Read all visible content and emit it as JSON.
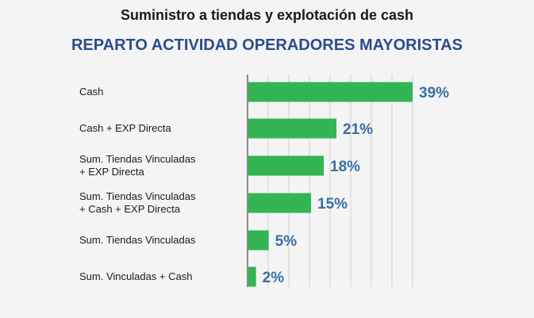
{
  "chart_data": {
    "type": "bar",
    "orientation": "horizontal",
    "title": "Suministro a tiendas y explotación de cash",
    "subtitle": "REPARTO ACTIVIDAD OPERADORES MAYORISTAS",
    "categories": [
      [
        "Cash"
      ],
      [
        "Cash + EXP Directa"
      ],
      [
        "Sum. Tiendas Vinculadas",
        "+ EXP Directa"
      ],
      [
        "Sum. Tiendas Vinculadas",
        "+ Cash + EXP Directa"
      ],
      [
        "Sum. Tiendas Vinculadas"
      ],
      [
        "Sum. Vinculadas + Cash"
      ]
    ],
    "values": [
      39,
      21,
      18,
      15,
      5,
      2
    ],
    "value_labels": [
      "39%",
      "21%",
      "18%",
      "15%",
      "5%",
      "2%"
    ],
    "xlim": [
      0,
      40
    ],
    "grid": true,
    "colors": {
      "bar": "#33b554",
      "value_label": "#3a6ea5",
      "grid": "#cfcfcf",
      "axis": "#8a8a8a"
    }
  }
}
